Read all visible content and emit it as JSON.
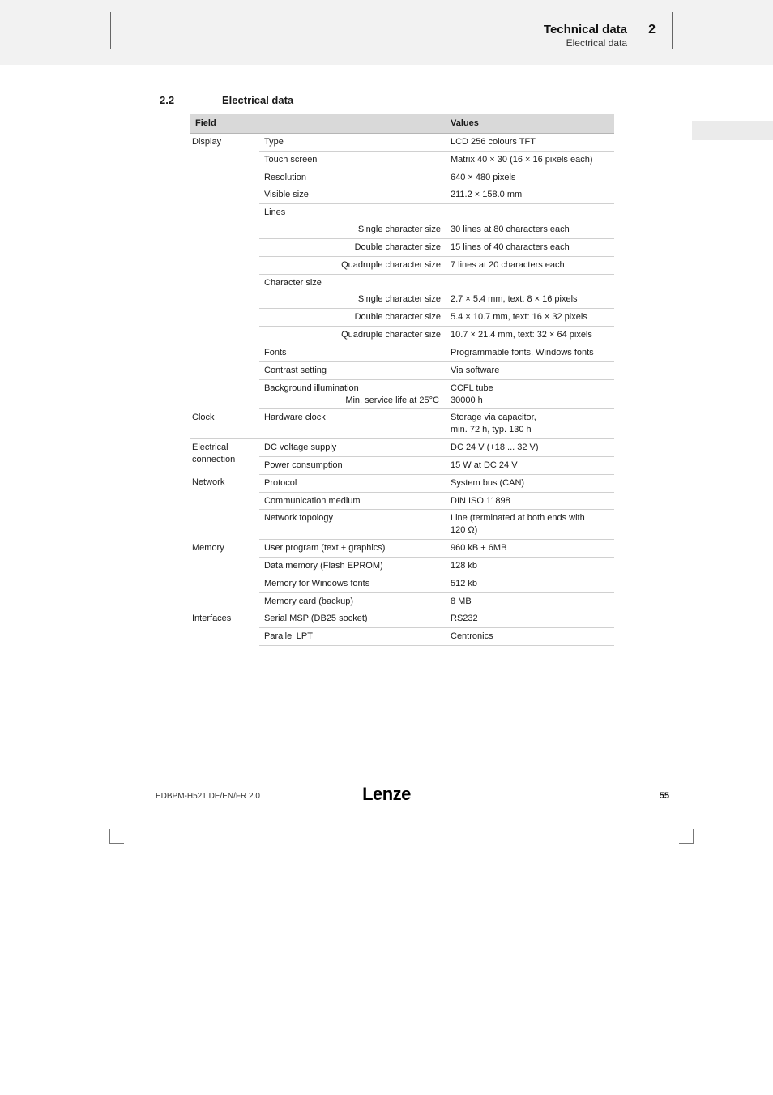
{
  "header": {
    "title": "Technical data",
    "subtitle": "Electrical data",
    "chapter": "2"
  },
  "section": {
    "num": "2.2",
    "title": "Electrical data"
  },
  "table": {
    "head_field": "Field",
    "head_values": "Values",
    "rows": [
      {
        "cat": "Display",
        "field": "Type",
        "value": "LCD 256 colours TFT",
        "catspan": 15
      },
      {
        "field": "Touch screen",
        "value": "Matrix 40 × 30 (16 × 16 pixels each)"
      },
      {
        "field": "Resolution",
        "value": "640 × 480 pixels"
      },
      {
        "field": "Visible size",
        "value": "211.2 × 158.0 mm"
      },
      {
        "field": "Lines",
        "value": "",
        "field_nb": true,
        "val_nb": true
      },
      {
        "sub": "Single character size",
        "value": "30 lines at 80 characters each"
      },
      {
        "sub": "Double character size",
        "value": "15 lines of 40 characters each"
      },
      {
        "sub": "Quadruple character size",
        "value": "7 lines at 20 characters each"
      },
      {
        "field": "Character size",
        "value": "",
        "field_nb": true,
        "val_nb": true
      },
      {
        "sub": "Single character size",
        "value": "2.7 × 5.4 mm, text: 8 × 16 pixels"
      },
      {
        "sub": "Double character size",
        "value": "5.4 × 10.7 mm, text: 16 × 32 pixels"
      },
      {
        "sub": "Quadruple character size",
        "value": "10.7 × 21.4 mm, text: 32 × 64 pixels"
      },
      {
        "field": "Fonts",
        "value": "Programmable fonts, Windows fonts"
      },
      {
        "field": "Contrast setting",
        "value": "Via software"
      },
      {
        "field_multi": [
          "Background illumination",
          "Min. service life at 25°C"
        ],
        "value_multi": [
          "CCFL tube",
          "30000 h"
        ],
        "cat_bb": true
      },
      {
        "cat": "Clock",
        "field": "Hardware clock",
        "value_multi": [
          "Storage via capacitor,",
          "min. 72 h, typ. 130 h"
        ],
        "catspan": 1,
        "cat_bb": true
      },
      {
        "cat": "Electrical connection",
        "field": "DC voltage supply",
        "value": "DC 24 V (+18 ... 32 V)",
        "catspan": 2
      },
      {
        "field": "Power consumption",
        "value": "15 W at DC 24 V",
        "cat_bb": true
      },
      {
        "cat": "Network",
        "field": "Protocol",
        "value": "System bus (CAN)",
        "catspan": 3
      },
      {
        "field": "Communication medium",
        "value": "DIN ISO 11898"
      },
      {
        "field": "Network topology",
        "value_multi": [
          "Line (terminated at both ends with",
          "120 Ω)"
        ],
        "cat_bb": true
      },
      {
        "cat": "Memory",
        "field": "User program (text + graphics)",
        "value": "960 kB + 6MB",
        "catspan": 4
      },
      {
        "field": "Data memory (Flash EPROM)",
        "value": "128 kb"
      },
      {
        "field": "Memory for Windows fonts",
        "value": "512 kb"
      },
      {
        "field": "Memory card (backup)",
        "value": "8 MB",
        "cat_bb": true
      },
      {
        "cat": "Interfaces",
        "field": "Serial MSP (DB25 socket)",
        "value": "RS232",
        "catspan": 2
      },
      {
        "field": "Parallel LPT",
        "value": "Centronics",
        "cat_bb": true
      }
    ]
  },
  "footer": {
    "code": "EDBPM-H521  DE/EN/FR  2.0",
    "logo": "Lenze",
    "page": "55"
  },
  "colors": {
    "header_bg": "#f2f2f2",
    "table_head_bg": "#d9d9d9",
    "row_border": "#d0d0d0"
  }
}
